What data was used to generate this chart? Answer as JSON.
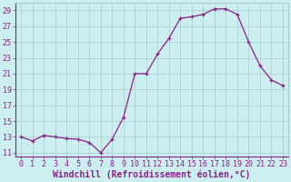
{
  "x": [
    0,
    1,
    2,
    3,
    4,
    5,
    6,
    7,
    8,
    9,
    10,
    11,
    12,
    13,
    14,
    15,
    16,
    17,
    18,
    19,
    20,
    21,
    22,
    23
  ],
  "y": [
    13,
    12.5,
    13.2,
    13,
    12.8,
    12.7,
    12.3,
    11,
    12.7,
    15.5,
    21,
    21,
    23.5,
    25.5,
    28,
    28.2,
    28.5,
    29.2,
    29.2,
    28.5,
    25,
    22,
    20.2,
    19.5
  ],
  "line_color": "#882288",
  "marker": "+",
  "bg_color": "#cceef0",
  "grid_color": "#aacccc",
  "xlabel": "Windchill (Refroidissement éolien,°C)",
  "xlabel_color": "#882288",
  "ylim": [
    10.5,
    30
  ],
  "ytick_values": [
    11,
    13,
    15,
    17,
    19,
    21,
    23,
    25,
    27,
    29
  ],
  "xtick_values": [
    0,
    1,
    2,
    3,
    4,
    5,
    6,
    7,
    8,
    9,
    10,
    11,
    12,
    13,
    14,
    15,
    16,
    17,
    18,
    19,
    20,
    21,
    22,
    23
  ],
  "font_color": "#882288",
  "xlabel_fontsize": 7,
  "tick_fontsize": 6,
  "marker_size": 3,
  "line_width": 0.9
}
